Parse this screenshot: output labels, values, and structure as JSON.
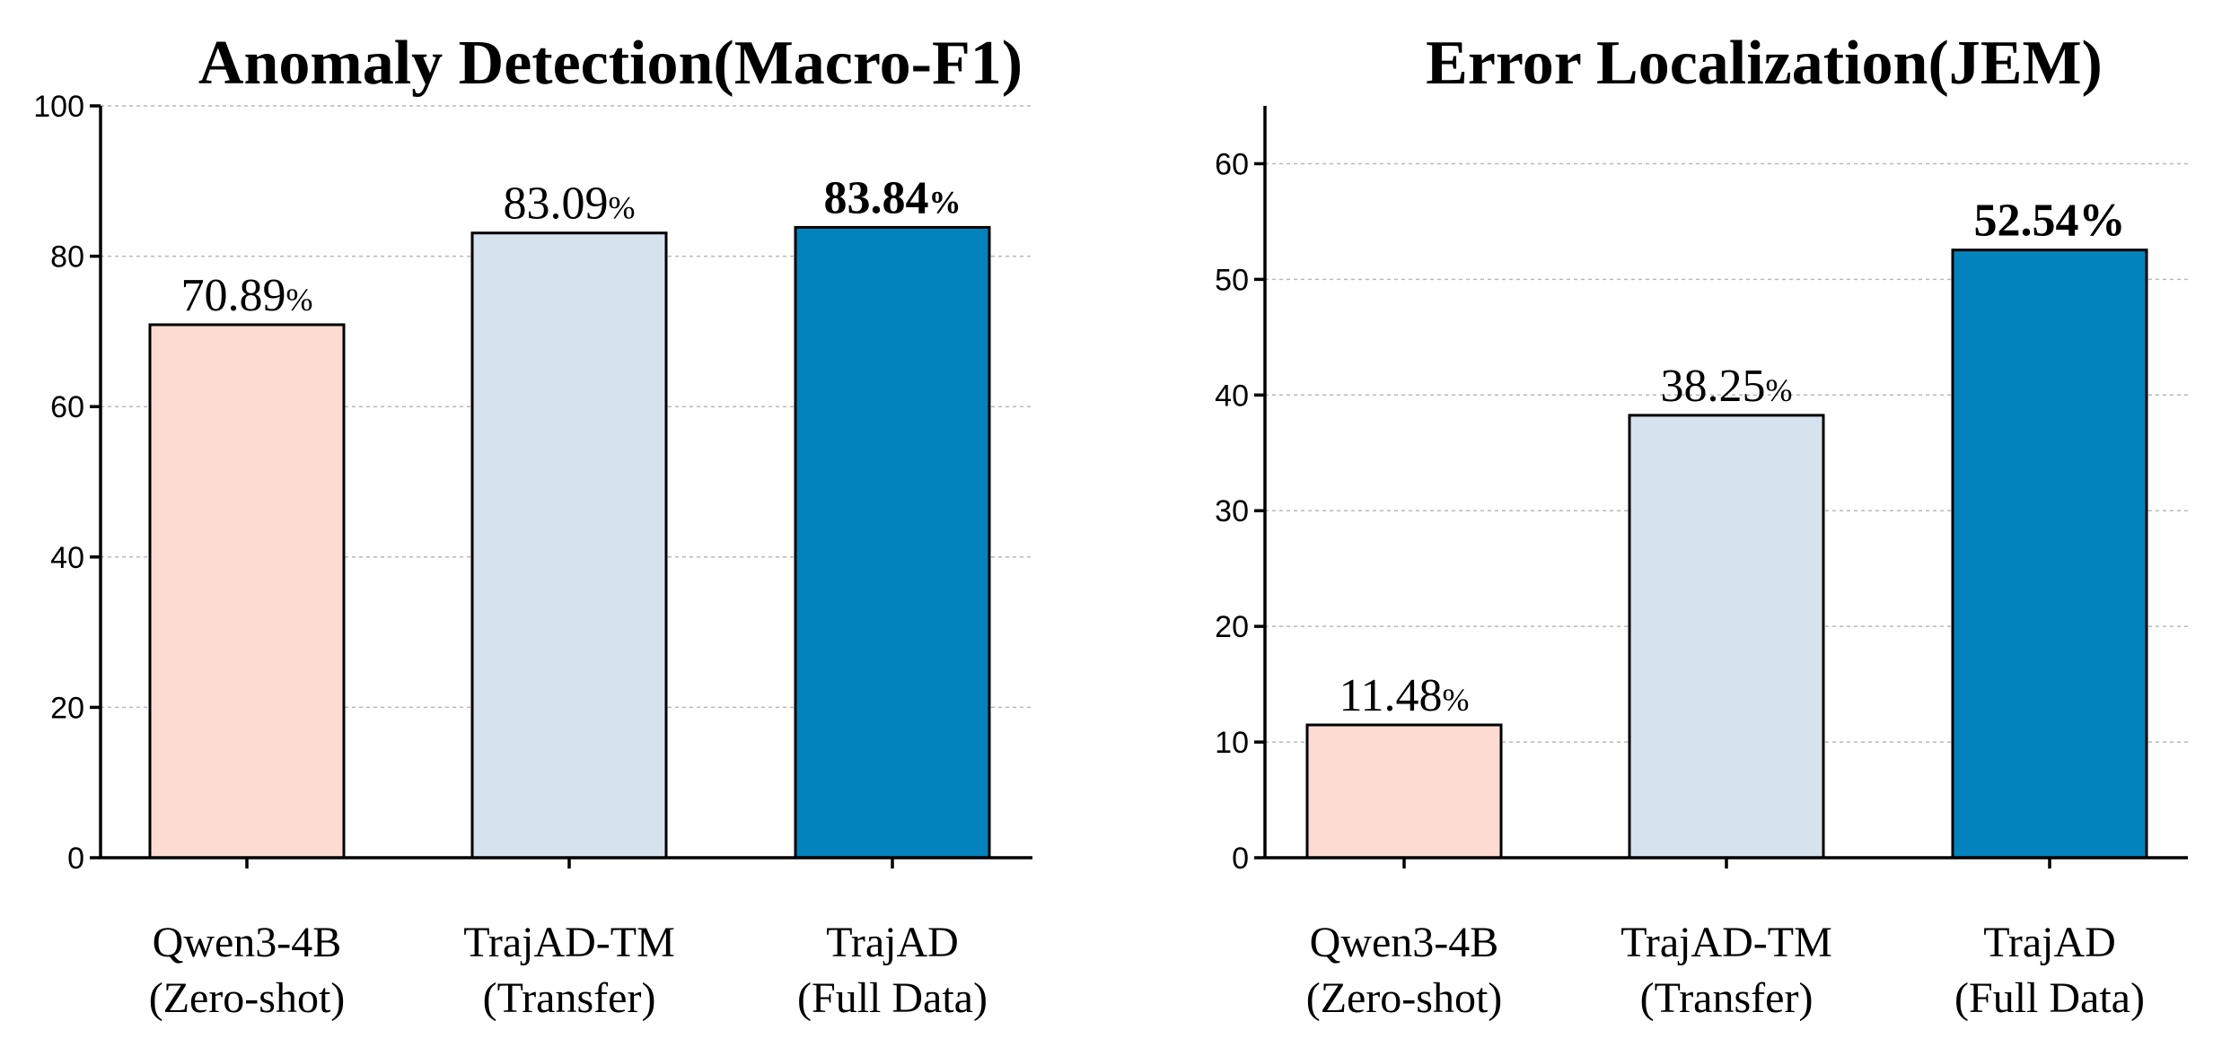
{
  "chart_data": [
    {
      "type": "bar",
      "title": "Anomaly Detection(Macro-F1)",
      "categories": [
        [
          "Qwen3-4B",
          "(Zero-shot)"
        ],
        [
          "TrajAD-TM",
          "(Transfer)"
        ],
        [
          "TrajAD",
          "(Full Data)"
        ]
      ],
      "values": [
        70.89,
        83.09,
        83.84
      ],
      "labels": [
        {
          "num": "70.89",
          "pct": "%",
          "bold": false
        },
        {
          "num": "83.09",
          "pct": "%",
          "bold": false
        },
        {
          "num": "83.84",
          "pct": "%",
          "bold": true
        }
      ],
      "colors": [
        "#fddbd2",
        "#d6e2ee",
        "#0283bd"
      ],
      "ylim": [
        0,
        100
      ],
      "yticks": [
        0,
        20,
        40,
        60,
        80,
        100
      ],
      "xlabel": "",
      "ylabel": "",
      "grid": true
    },
    {
      "type": "bar",
      "title": "Error Localization(JEM)",
      "categories": [
        [
          "Qwen3-4B",
          "(Zero-shot)"
        ],
        [
          "TrajAD-TM",
          "(Transfer)"
        ],
        [
          "TrajAD",
          "(Full Data)"
        ]
      ],
      "values": [
        11.48,
        38.25,
        52.54
      ],
      "labels": [
        {
          "num": "11.48",
          "pct": "%",
          "bold": false
        },
        {
          "num": "38.25",
          "pct": "%",
          "bold": false
        },
        {
          "num": "52.54%",
          "pct": "",
          "bold": true
        }
      ],
      "colors": [
        "#fddbd2",
        "#d6e2ee",
        "#0283bd"
      ],
      "ylim": [
        0,
        65
      ],
      "yticks": [
        0,
        10,
        20,
        30,
        40,
        50,
        60
      ],
      "xlabel": "",
      "ylabel": "",
      "grid": true
    }
  ]
}
